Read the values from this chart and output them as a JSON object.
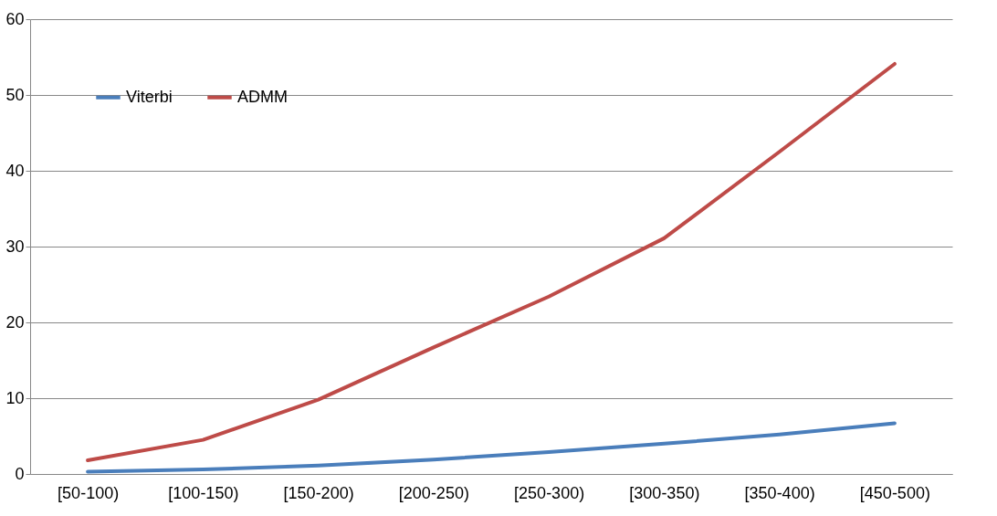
{
  "chart_data": {
    "type": "line",
    "categories": [
      "[50-100)",
      "[100-150)",
      "[150-200)",
      "[200-250)",
      "[250-300)",
      "[300-350)",
      "[350-400)",
      "[450-500)"
    ],
    "series": [
      {
        "name": "Viterbi",
        "color": "#4a7ebb",
        "values": [
          0.3,
          0.6,
          1.1,
          1.9,
          2.9,
          4.0,
          5.2,
          6.7
        ]
      },
      {
        "name": "ADMM",
        "color": "#be4b48",
        "values": [
          1.8,
          4.5,
          9.8,
          16.7,
          23.4,
          31.1,
          42.5,
          54.1
        ]
      }
    ],
    "ylim": [
      0,
      60
    ],
    "yticks": [
      0,
      10,
      20,
      30,
      40,
      50,
      60
    ],
    "grid": "y",
    "legend": "top left",
    "marker": "none",
    "line_style": "solid"
  }
}
